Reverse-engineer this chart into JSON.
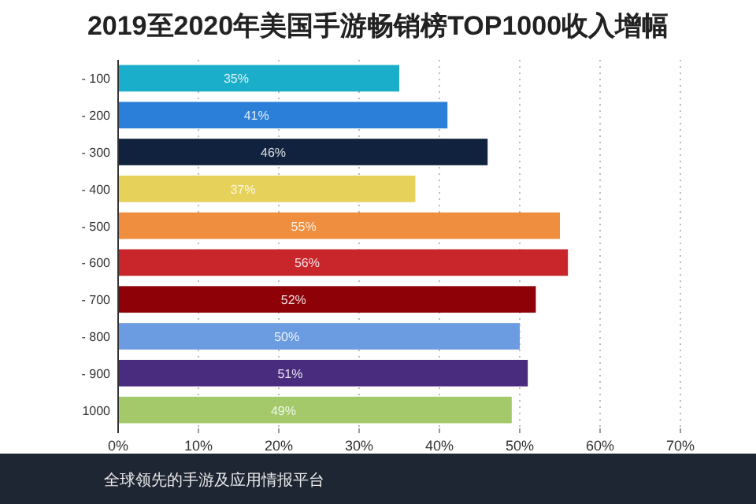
{
  "chart_data": {
    "type": "bar",
    "orientation": "horizontal",
    "title": "2019至2020年美国手游畅销榜TOP1000收入增幅",
    "categories": [
      "- 100",
      "- 200",
      "- 300",
      "- 400",
      "- 500",
      "- 600",
      "- 700",
      "- 800",
      "- 900",
      "1000"
    ],
    "values": [
      35,
      41,
      46,
      37,
      55,
      56,
      52,
      50,
      51,
      49
    ],
    "colors": [
      "#1aaecb",
      "#2b7fd8",
      "#10223d",
      "#e6d25a",
      "#ef8e3e",
      "#c8262b",
      "#8e0106",
      "#6b9be0",
      "#4a2c7e",
      "#a3c96a"
    ],
    "value_labels": [
      "35%",
      "41%",
      "46%",
      "37%",
      "55%",
      "56%",
      "52%",
      "50%",
      "51%",
      "49%"
    ],
    "xlim": [
      0,
      70
    ],
    "xticks": [
      {
        "value": 0,
        "label": "0%"
      },
      {
        "value": 10,
        "label": "10%"
      },
      {
        "value": 20,
        "label": "20%"
      },
      {
        "value": 30,
        "label": "30%"
      },
      {
        "value": 40,
        "label": "40%"
      },
      {
        "value": 50,
        "label": "50%"
      },
      {
        "value": 60,
        "label": "60%"
      },
      {
        "value": 70,
        "label": "70%"
      }
    ],
    "grid": "x",
    "annotations": [
      "全球领先的手游及应用情报平台"
    ]
  }
}
